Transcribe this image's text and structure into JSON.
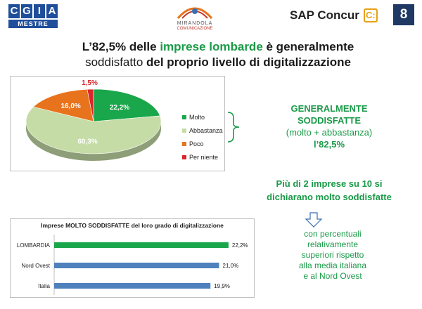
{
  "header": {
    "cgia_letters": [
      "C",
      "G",
      "I",
      "A"
    ],
    "cgia_sub": "MESTRE",
    "mirandola_line1": "MIRANDOLA",
    "mirandola_line2": "COMUNICAZIONE",
    "sap_label": "SAP Concur",
    "sap_icon": "C:",
    "slide_number": "8"
  },
  "title": {
    "part1": "L’82,5% delle ",
    "part2": "imprese lombarde",
    "part3": " è generalmente",
    "part4": "soddisfatto ",
    "part5": "del proprio livello di digitalizzazione"
  },
  "summary": {
    "line1": "GENERALMENTE",
    "line2": "SODDISFATTE",
    "line3": "(molto + abbastanza)",
    "line4": "l’82,5%"
  },
  "highlight": {
    "line1": "Più di 2 imprese su 10 si",
    "line2": "dichiarano molto soddisfatte"
  },
  "note": {
    "lines": [
      "con percentuali",
      "relativamente",
      "superiori rispetto",
      "alla media italiana",
      "e al Nord Ovest"
    ]
  },
  "chart_data": [
    {
      "type": "pie",
      "title": "",
      "categories": [
        "Molto",
        "Abbastanza",
        "Poco",
        "Per niente"
      ],
      "values": [
        22.2,
        60.3,
        16.0,
        1.5
      ],
      "labels": [
        "22,2%",
        "60,3%",
        "16,0%",
        "1,5%"
      ],
      "colors": [
        "#1aa64b",
        "#c5dca6",
        "#e8731d",
        "#d9262b"
      ],
      "legend": "right"
    },
    {
      "type": "bar",
      "orientation": "horizontal",
      "title": "Imprese MOLTO SODDISFATTE del loro grado di digitalizzazione",
      "categories": [
        "LOMBARDIA",
        "Nord Ovest",
        "Italia"
      ],
      "values": [
        22.2,
        21.0,
        19.9
      ],
      "labels": [
        "22,2%",
        "21,0%",
        "19,9%"
      ],
      "colors": [
        "#1aa64b",
        "#4f81bd",
        "#4f81bd"
      ],
      "xlim": [
        0,
        24
      ]
    }
  ]
}
